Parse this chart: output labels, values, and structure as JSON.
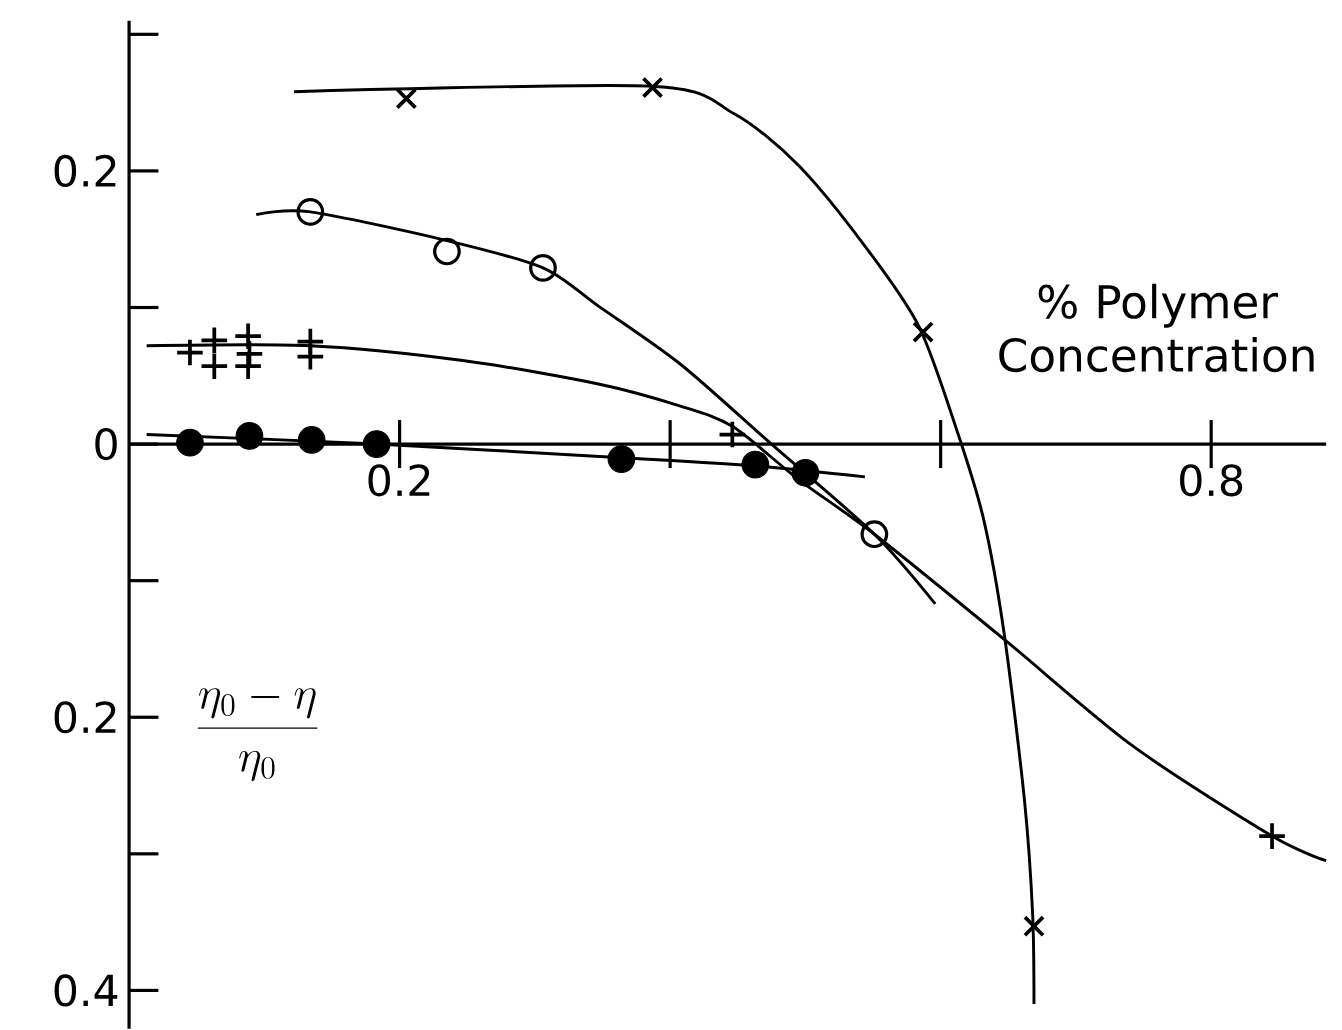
{
  "chart_data": {
    "type": "scatter",
    "xlabel": "% Polymer Concentration",
    "ylabel": "\\frac{\\eta_0-\\eta}{\\eta_0}",
    "xlim": [
      0,
      0.885
    ],
    "ylim": [
      -0.428,
      0.31
    ],
    "xticks": [
      {
        "value": 0.2,
        "label": "0.2"
      },
      {
        "value": 0.4,
        "label": null
      },
      {
        "value": 0.6,
        "label": null
      },
      {
        "value": 0.8,
        "label": "0.8"
      }
    ],
    "yticks": [
      {
        "value": 0.3,
        "label": null
      },
      {
        "value": 0.2,
        "label": "0.2"
      },
      {
        "value": 0.1,
        "label": null
      },
      {
        "value": 0,
        "label": "0"
      },
      {
        "value": -0.1,
        "label": null
      },
      {
        "value": -0.2,
        "label": "0.2"
      },
      {
        "value": -0.3,
        "label": null
      },
      {
        "value": -0.4,
        "label": "0.4"
      }
    ],
    "grid": false,
    "series": [
      {
        "type": "line",
        "marker": "none",
        "color": "#000000",
        "x": [
          0.122,
          0.386,
          0.447,
          0.495,
          0.544,
          0.584,
          0.613,
          0.632,
          0.647,
          0.662,
          0.668,
          0.669
        ],
        "values": [
          0.258,
          0.262,
          0.242,
          0.204,
          0.145,
          0.086,
          0.007,
          -0.056,
          -0.139,
          -0.261,
          -0.344,
          -0.41
        ]
      },
      {
        "type": "line",
        "marker": "none",
        "color": "#000000",
        "x": [
          0.094,
          0.134,
          0.235,
          0.306,
          0.347,
          0.407,
          0.476,
          0.551,
          0.596
        ],
        "values": [
          0.168,
          0.17,
          0.149,
          0.129,
          0.101,
          0.059,
          -0.001,
          -0.066,
          -0.117
        ]
      },
      {
        "type": "line",
        "marker": "none",
        "color": "#000000",
        "x": [
          0.013,
          0.134,
          0.248,
          0.347,
          0.407,
          0.446,
          0.495,
          0.551,
          0.647,
          0.742,
          0.845,
          0.885
        ],
        "values": [
          0.072,
          0.072,
          0.061,
          0.044,
          0.028,
          0.013,
          -0.026,
          -0.066,
          -0.143,
          -0.221,
          -0.287,
          -0.305
        ]
      },
      {
        "type": "line",
        "marker": "none",
        "color": "#000000",
        "x": [
          0.013,
          0.183,
          0.364,
          0.463,
          0.544
        ],
        "values": [
          0.007,
          0.0,
          -0.01,
          -0.016,
          -0.024
        ]
      },
      {
        "marker": "cross",
        "color": "#000000",
        "x": [
          0.205,
          0.387,
          0.587,
          0.669
        ],
        "values": [
          0.253,
          0.261,
          0.082,
          -0.353
        ]
      },
      {
        "marker": "open circle",
        "color": "#000000",
        "x": [
          0.134,
          0.235,
          0.306,
          0.551
        ],
        "values": [
          0.17,
          0.141,
          0.129,
          -0.066
        ]
      },
      {
        "marker": "plus",
        "color": "#000000",
        "x": [
          0.045,
          0.063,
          0.063,
          0.088,
          0.089,
          0.088,
          0.134,
          0.134,
          0.446,
          0.845
        ],
        "values": [
          0.067,
          0.076,
          0.057,
          0.079,
          0.066,
          0.057,
          0.075,
          0.064,
          0.007,
          -0.287
        ]
      },
      {
        "marker": "circle",
        "color": "#000000",
        "x": [
          0.045,
          0.089,
          0.135,
          0.183,
          0.364,
          0.463,
          0.5
        ],
        "values": [
          0.001,
          0.006,
          0.003,
          0.0,
          -0.011,
          -0.015,
          -0.021
        ]
      }
    ]
  }
}
